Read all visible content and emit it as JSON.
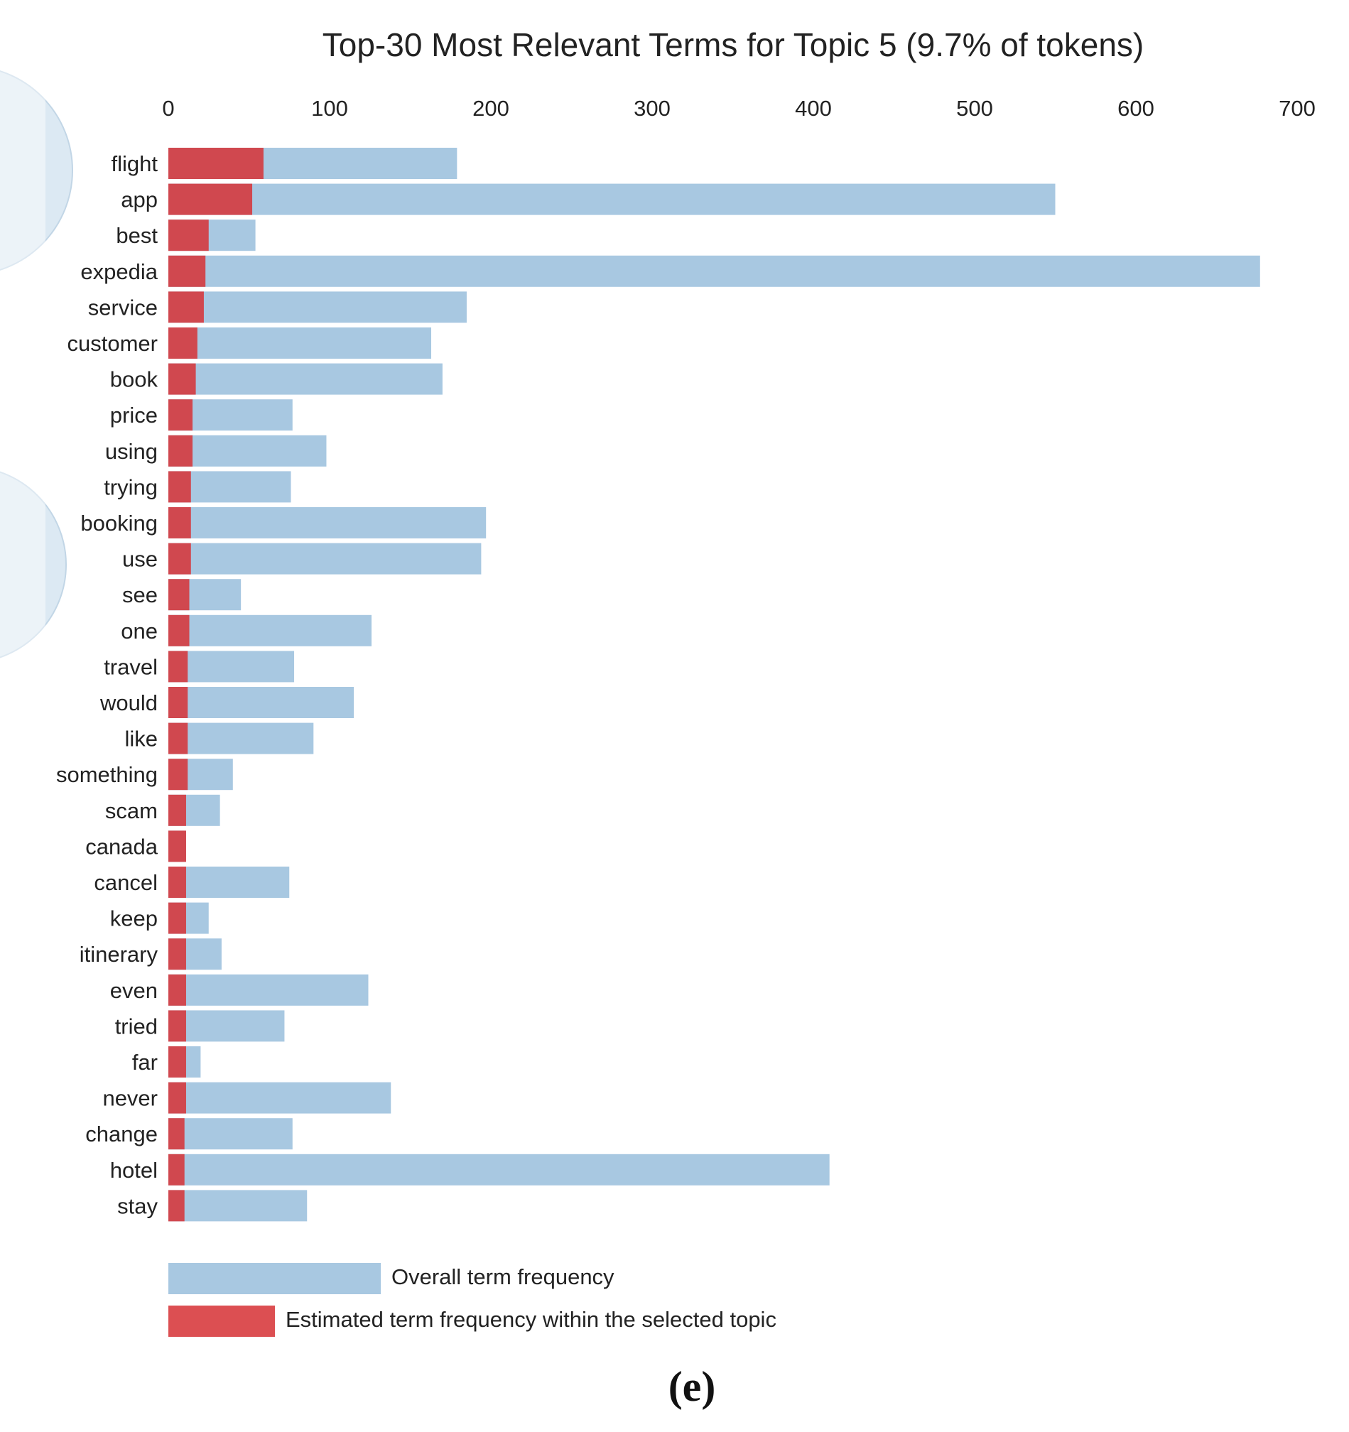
{
  "chart_data": {
    "type": "bar",
    "orientation": "horizontal",
    "title": "Top-30 Most Relevant Terms for Topic 5 (9.7% of tokens)",
    "xlabel": "",
    "ylabel": "",
    "xlim": [
      0,
      700
    ],
    "xticks": [
      "0",
      "100",
      "200",
      "300",
      "400",
      "500",
      "600",
      "700"
    ],
    "grid": false,
    "legend_position": "bottom",
    "categories": [
      "flight",
      "app",
      "best",
      "expedia",
      "service",
      "customer",
      "book",
      "price",
      "using",
      "trying",
      "booking",
      "use",
      "see",
      "one",
      "travel",
      "would",
      "like",
      "something",
      "scam",
      "canada",
      "cancel",
      "keep",
      "itinerary",
      "even",
      "tried",
      "far",
      "never",
      "change",
      "hotel",
      "stay"
    ],
    "series": [
      {
        "name": "Overall term frequency",
        "color": "#a8c8e1",
        "values": [
          179,
          550,
          54,
          677,
          185,
          163,
          170,
          77,
          98,
          76,
          197,
          194,
          45,
          126,
          78,
          115,
          90,
          40,
          32,
          10,
          75,
          25,
          33,
          124,
          72,
          20,
          138,
          77,
          410,
          86
        ]
      },
      {
        "name": "Estimated term frequency within the selected topic",
        "color": "#d0484f",
        "values": [
          59,
          52,
          25,
          23,
          22,
          18,
          17,
          15,
          15,
          14,
          14,
          14,
          13,
          13,
          12,
          12,
          12,
          12,
          11,
          11,
          11,
          11,
          11,
          11,
          11,
          11,
          11,
          10,
          10,
          10
        ]
      }
    ]
  },
  "legend": {
    "overall_label": "Overall term frequency",
    "topic_label": "Estimated term frequency within the selected topic",
    "overall_color": "#a8c8e1",
    "topic_color": "#d0484f",
    "overall_swatch_color": "#a8c8e1",
    "topic_swatch_color": "#dc4f52"
  },
  "panel_label": "(e)",
  "decorations": {
    "circle_fill": "#dce9f3",
    "circle_stroke": "#c2d6e6"
  }
}
